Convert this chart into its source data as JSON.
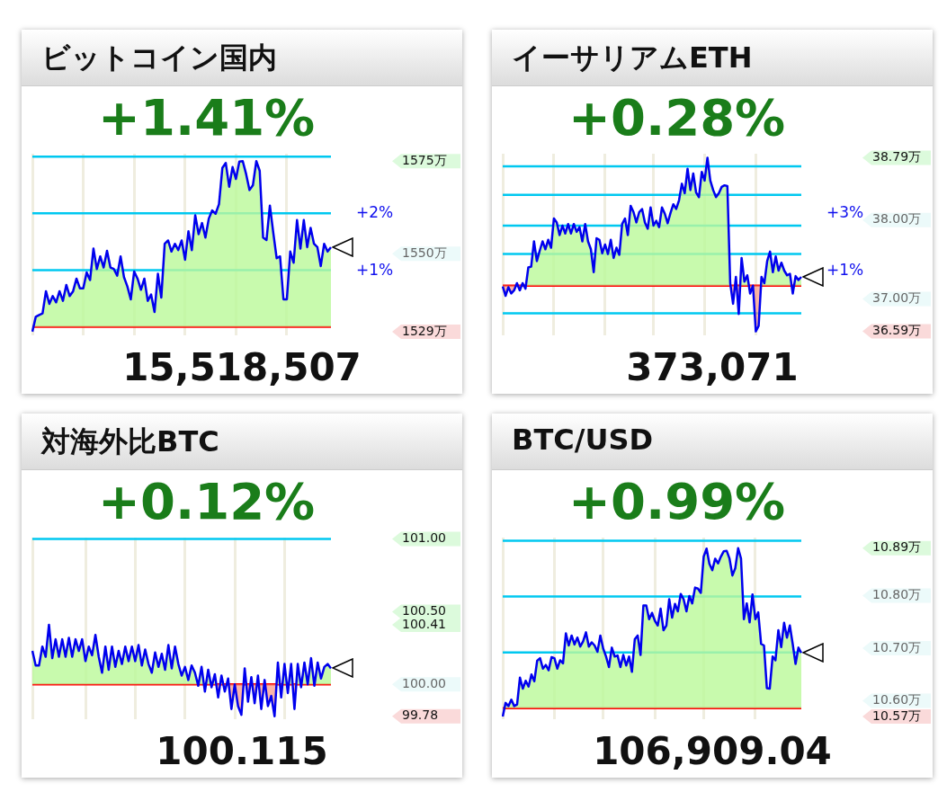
{
  "chart_data": [
    {
      "type": "area",
      "title": "ビットコイン国内",
      "subtitle": "+1.41%",
      "color": "#bbf99a",
      "grid": "x",
      "tick_labels": "y",
      "categories": [
        null,
        null,
        null,
        null,
        null,
        null,
        null,
        null,
        null,
        null,
        null,
        null,
        null,
        null,
        null,
        null,
        null,
        null,
        null,
        null,
        null,
        null,
        null,
        null,
        null,
        null,
        null,
        null,
        null,
        null,
        null,
        null,
        null,
        null,
        null,
        null,
        null,
        null,
        null,
        null,
        null,
        null,
        null,
        null,
        null,
        null,
        null,
        null,
        null,
        null,
        null,
        null,
        null,
        null,
        null,
        null,
        null,
        null,
        null,
        null,
        null,
        null,
        null,
        null,
        null,
        null,
        null,
        null,
        null,
        null,
        null,
        null,
        null,
        null,
        null,
        null,
        null,
        null,
        null,
        null,
        null,
        null,
        null,
        null,
        null,
        null,
        null,
        null,
        null
      ],
      "ylim": [
        1528,
        1577
      ],
      "yticks": [
        {
          "value": 1529,
          "label": "1529万"
        },
        {
          "value": 1550,
          "label": "1550万"
        },
        {
          "value": 1575,
          "label": "1575万"
        }
      ],
      "ref_lines": [
        {
          "axis": "y",
          "value": 1530.3,
          "color": "#ff0000"
        },
        {
          "axis": "y",
          "value": 1545.6,
          "color": "#00c8f0"
        },
        {
          "axis": "y",
          "value": 1560.9,
          "color": "#00c8f0"
        },
        {
          "axis": "y",
          "value": 1576.2,
          "color": "#00c8f0"
        }
      ],
      "annotations": [
        "+2%",
        "+1%",
        "15,518,507"
      ],
      "values": [
        1529,
        1533.0,
        1533.5,
        1533.9,
        1539.9,
        1536.5,
        1538.6,
        1536.9,
        1539.9,
        1537.3,
        1541.6,
        1538.6,
        1539.9,
        1543.3,
        1540.7,
        1540.7,
        1545.0,
        1542.9,
        1551.4,
        1545.9,
        1549.3,
        1546.3,
        1550.8,
        1546.3,
        1545.9,
        1544.1,
        1549.3,
        1543.7,
        1541.2,
        1537.7,
        1545.2,
        1543.3,
        1540.3,
        1543.3,
        1537.3,
        1539.0,
        1534.3,
        1544.6,
        1538.2,
        1552.7,
        1553.6,
        1550.6,
        1552.7,
        1551.0,
        1553.6,
        1548.4,
        1556.1,
        1551.0,
        1560.4,
        1555.3,
        1558.3,
        1554.4,
        1559.5,
        1561.7,
        1560.8,
        1563.4,
        1573.2,
        1574.5,
        1568.1,
        1573.4,
        1570.2,
        1574.9,
        1575,
        1571.5,
        1567.2,
        1568.5,
        1575,
        1572.4,
        1554.4,
        1553.7,
        1563.0,
        1555.7,
        1548.8,
        1549.3,
        1537.7,
        1537.7,
        1550.6,
        1547.6,
        1559.1,
        1551.4,
        1559.1,
        1551.8,
        1557.0,
        1552.7,
        1551.8,
        1546.7,
        1552.7,
        1550.6,
        1551.8
      ]
    },
    {
      "type": "area",
      "title": "イーサリアムETH",
      "subtitle": "+0.28%",
      "color": "#bbf99a",
      "grid": "x",
      "tick_labels": "y",
      "categories": [
        null,
        null,
        null,
        null,
        null,
        null,
        null,
        null,
        null,
        null,
        null,
        null,
        null,
        null,
        null,
        null,
        null,
        null,
        null,
        null,
        null,
        null,
        null,
        null,
        null,
        null,
        null,
        null,
        null,
        null,
        null,
        null,
        null,
        null,
        null,
        null,
        null,
        null,
        null,
        null,
        null,
        null,
        null,
        null,
        null,
        null,
        null,
        null,
        null,
        null,
        null,
        null,
        null,
        null,
        null,
        null,
        null,
        null,
        null,
        null,
        null,
        null,
        null,
        null,
        null,
        null,
        null,
        null,
        null,
        null,
        null,
        null,
        null,
        null,
        null,
        null,
        null,
        null,
        null,
        null,
        null,
        null,
        null,
        null,
        null,
        null,
        null,
        null,
        null,
        null,
        null,
        null,
        null,
        null,
        null,
        null,
        null,
        null,
        null,
        null,
        null,
        null,
        null,
        null,
        null,
        null
      ],
      "ylim": [
        36.54,
        38.84
      ],
      "yticks": [
        {
          "value": 36.59,
          "label": "36.59万"
        },
        {
          "value": 37,
          "label": "37.00万"
        },
        {
          "value": 38,
          "label": "38.00万"
        },
        {
          "value": 38.79,
          "label": "38.79万"
        }
      ],
      "ref_lines": [
        {
          "axis": "y",
          "value": 37.17,
          "color": "#ff0000"
        },
        {
          "axis": "y",
          "value": 36.82,
          "color": "#00c8f0"
        },
        {
          "axis": "y",
          "value": 37.57,
          "color": "#00c8f0"
        },
        {
          "axis": "y",
          "value": 37.93,
          "color": "#00c8f0"
        },
        {
          "axis": "y",
          "value": 38.32,
          "color": "#00c8f0"
        },
        {
          "axis": "y",
          "value": 38.68,
          "color": "#00c8f0"
        }
      ],
      "annotations": [
        "+3%",
        "+1%",
        "373,071"
      ],
      "values": [
        37.16,
        37.04,
        37.15,
        37.07,
        37.11,
        37.2,
        37.11,
        37.2,
        37.13,
        37.4,
        37.41,
        37.73,
        37.48,
        37.61,
        37.73,
        37.63,
        37.75,
        37.65,
        38.02,
        37.97,
        37.81,
        37.93,
        37.83,
        37.95,
        37.83,
        37.95,
        37.85,
        37.91,
        37.73,
        37.95,
        37.73,
        37.63,
        37.34,
        37.77,
        37.75,
        37.58,
        37.69,
        37.57,
        37.75,
        37.52,
        37.65,
        37.56,
        37.95,
        38.02,
        37.81,
        38.18,
        38.1,
        37.97,
        38.1,
        38.14,
        37.97,
        37.89,
        38.16,
        37.93,
        37.99,
        37.91,
        38.16,
        38.08,
        37.96,
        38.09,
        38.2,
        38.14,
        38.25,
        38.46,
        38.34,
        38.65,
        38.38,
        38.59,
        38.35,
        38.29,
        38.61,
        38.5,
        38.79,
        38.5,
        38.38,
        38.29,
        38.34,
        38.42,
        38.44,
        38.43,
        37.2,
        36.94,
        37.28,
        36.81,
        37.52,
        37.22,
        37.3,
        37.07,
        37.17,
        36.59,
        36.66,
        37.28,
        37.2,
        37.48,
        37.6,
        37.34,
        37.54,
        37.36,
        37.46,
        37.36,
        37.3,
        37.32,
        37.07,
        37.29,
        37.24,
        37.28
      ]
    },
    {
      "type": "area",
      "title": "対海外比BTC",
      "subtitle": "+0.12%",
      "color": "#bbf99a",
      "grid": "x",
      "tick_labels": "y",
      "categories": [
        null,
        null,
        null,
        null,
        null,
        null,
        null,
        null,
        null,
        null,
        null,
        null,
        null,
        null,
        null,
        null,
        null,
        null,
        null,
        null,
        null,
        null,
        null,
        null,
        null,
        null,
        null,
        null,
        null,
        null,
        null,
        null,
        null,
        null,
        null,
        null,
        null,
        null,
        null,
        null,
        null,
        null,
        null,
        null,
        null,
        null,
        null,
        null,
        null,
        null,
        null,
        null,
        null,
        null,
        null,
        null,
        null,
        null,
        null,
        null,
        null,
        null,
        null,
        null,
        null,
        null,
        null,
        null,
        null,
        null,
        null,
        null,
        null,
        null,
        null,
        null,
        null,
        null,
        null,
        null,
        null,
        null,
        null,
        null,
        null,
        null,
        null,
        null,
        null,
        null,
        null
      ],
      "ylim": [
        99.76,
        101.01
      ],
      "yticks": [
        {
          "value": 99.78,
          "label": "99.78"
        },
        {
          "value": 100,
          "label": "100.00"
        },
        {
          "value": 100.41,
          "label": "100.41"
        },
        {
          "value": 100.5,
          "label": "100.50"
        },
        {
          "value": 101,
          "label": "101.00"
        }
      ],
      "ref_lines": [
        {
          "axis": "y",
          "value": 100,
          "color": "#ff0000"
        },
        {
          "axis": "y",
          "value": 101,
          "color": "#00c8f0"
        }
      ],
      "annotations": [
        "100.115"
      ],
      "values": [
        100.23,
        100.13,
        100.13,
        100.26,
        100.19,
        100.41,
        100.18,
        100.31,
        100.19,
        100.31,
        100.19,
        100.32,
        100.19,
        100.31,
        100.23,
        100.31,
        100.16,
        100.26,
        100.2,
        100.34,
        100.19,
        100.08,
        100.26,
        100.1,
        100.26,
        100.12,
        100.23,
        100.14,
        100.26,
        100.16,
        100.26,
        100.16,
        100.27,
        100.13,
        100.24,
        100.14,
        100.08,
        100.22,
        100.12,
        100.21,
        100.1,
        100.27,
        100.11,
        100.26,
        100.14,
        100.06,
        100.12,
        100.03,
        100.13,
        100.08,
        99.99,
        100.12,
        99.95,
        100.1,
        99.98,
        100.07,
        99.91,
        100.06,
        99.95,
        100.04,
        99.83,
        100.0,
        99.85,
        99.79,
        100.11,
        99.88,
        100.05,
        99.87,
        100.06,
        99.83,
        100.03,
        99.85,
        99.92,
        99.78,
        100.15,
        99.91,
        100.14,
        99.94,
        100.14,
        99.83,
        100.14,
        99.98,
        100.15,
        100.0,
        100.18,
        99.99,
        100.15,
        100.04,
        100.12,
        100.14,
        100.11
      ]
    },
    {
      "type": "area",
      "title": "BTC/USD",
      "subtitle": "+0.99%",
      "color": "#bbf99a",
      "grid": "x",
      "tick_labels": "y",
      "categories": [
        null,
        null,
        null,
        null,
        null,
        null,
        null,
        null,
        null,
        null,
        null,
        null,
        null,
        null,
        null,
        null,
        null,
        null,
        null,
        null,
        null,
        null,
        null,
        null,
        null,
        null,
        null,
        null,
        null,
        null,
        null,
        null,
        null,
        null,
        null,
        null,
        null,
        null,
        null,
        null,
        null,
        null,
        null,
        null,
        null,
        null,
        null,
        null,
        null,
        null,
        null,
        null,
        null,
        null,
        null,
        null,
        null,
        null,
        null,
        null,
        null,
        null,
        null,
        null,
        null,
        null,
        null,
        null,
        null,
        null,
        null,
        null,
        null,
        null,
        null,
        null,
        null,
        null,
        null,
        null,
        null,
        null,
        null,
        null,
        null,
        null,
        null,
        null,
        null,
        null,
        null,
        null,
        null,
        null,
        null,
        null,
        null,
        null,
        null,
        null,
        null,
        null,
        null,
        null,
        null
      ],
      "ylim": [
        10.565,
        10.91
      ],
      "yticks": [
        {
          "value": 10.57,
          "label": "10.57万"
        },
        {
          "value": 10.6,
          "label": "10.60万"
        },
        {
          "value": 10.7,
          "label": "10.70万"
        },
        {
          "value": 10.8,
          "label": "10.80万"
        },
        {
          "value": 10.89,
          "label": "10.89万"
        }
      ],
      "ref_lines": [
        {
          "axis": "y",
          "value": 10.586,
          "color": "#ff0000"
        },
        {
          "axis": "y",
          "value": 10.692,
          "color": "#00c8f0"
        },
        {
          "axis": "y",
          "value": 10.798,
          "color": "#00c8f0"
        },
        {
          "axis": "y",
          "value": 10.904,
          "color": "#00c8f0"
        }
      ],
      "annotations": [
        "106,909.04"
      ],
      "values": [
        10.57,
        10.596,
        10.59,
        10.602,
        10.59,
        10.593,
        10.644,
        10.623,
        10.638,
        10.627,
        10.65,
        10.637,
        10.676,
        10.681,
        10.661,
        10.668,
        10.658,
        10.683,
        10.681,
        10.661,
        10.677,
        10.671,
        10.728,
        10.705,
        10.724,
        10.707,
        10.72,
        10.703,
        10.713,
        10.73,
        10.703,
        10.711,
        10.705,
        10.693,
        10.724,
        10.699,
        10.684,
        10.664,
        10.701,
        10.684,
        10.686,
        10.664,
        10.687,
        10.667,
        10.684,
        10.655,
        10.717,
        10.724,
        10.687,
        10.781,
        10.781,
        10.755,
        10.767,
        10.752,
        10.743,
        10.775,
        10.734,
        10.743,
        10.793,
        10.758,
        10.784,
        10.77,
        10.803,
        10.793,
        10.77,
        10.799,
        10.785,
        10.815,
        10.813,
        10.805,
        10.874,
        10.889,
        10.86,
        10.848,
        10.87,
        10.861,
        10.874,
        10.884,
        10.885,
        10.87,
        10.838,
        10.852,
        10.89,
        10.87,
        10.755,
        10.785,
        10.749,
        10.802,
        10.755,
        10.768,
        10.708,
        10.705,
        10.624,
        10.623,
        10.684,
        10.677,
        10.734,
        10.702,
        10.748,
        10.72,
        10.743,
        10.708,
        10.67,
        10.701,
        10.691
      ]
    }
  ]
}
